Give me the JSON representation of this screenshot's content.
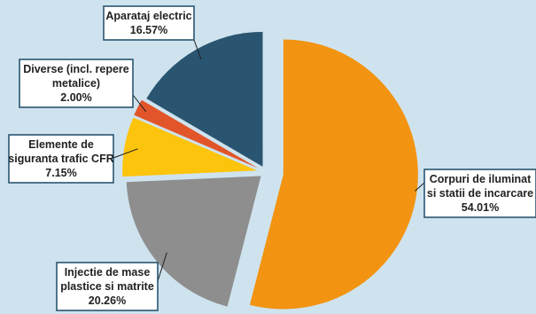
{
  "chart_data": {
    "type": "pie",
    "title": "",
    "categories": [
      "Corpuri de iluminat si statii de incarcare",
      "Injectie de mase plastice si matrite",
      "Elemente de siguranta trafic CFR",
      "Diverse (incl. repere metalice)",
      "Aparataj electric"
    ],
    "values": [
      54.01,
      20.26,
      7.15,
      2.0,
      16.57
    ],
    "colors": [
      "#f29411",
      "#8e8e8e",
      "#fcc40c",
      "#e2552a",
      "#2a5570"
    ],
    "labels": [
      {
        "lines": [
          "Corpuri de iluminat",
          "si statii de incarcare",
          "54.01%"
        ]
      },
      {
        "lines": [
          "Injectie de mase",
          "plastice si matrite",
          "20.26%"
        ]
      },
      {
        "lines": [
          "Elemente de",
          "siguranta trafic CFR",
          "7.15%"
        ]
      },
      {
        "lines": [
          "Diverse (incl. repere",
          "metalice)",
          "2.00%"
        ]
      },
      {
        "lines": [
          "Aparataj electric",
          "16.57%"
        ]
      }
    ],
    "legend": "none",
    "exploded": true
  }
}
